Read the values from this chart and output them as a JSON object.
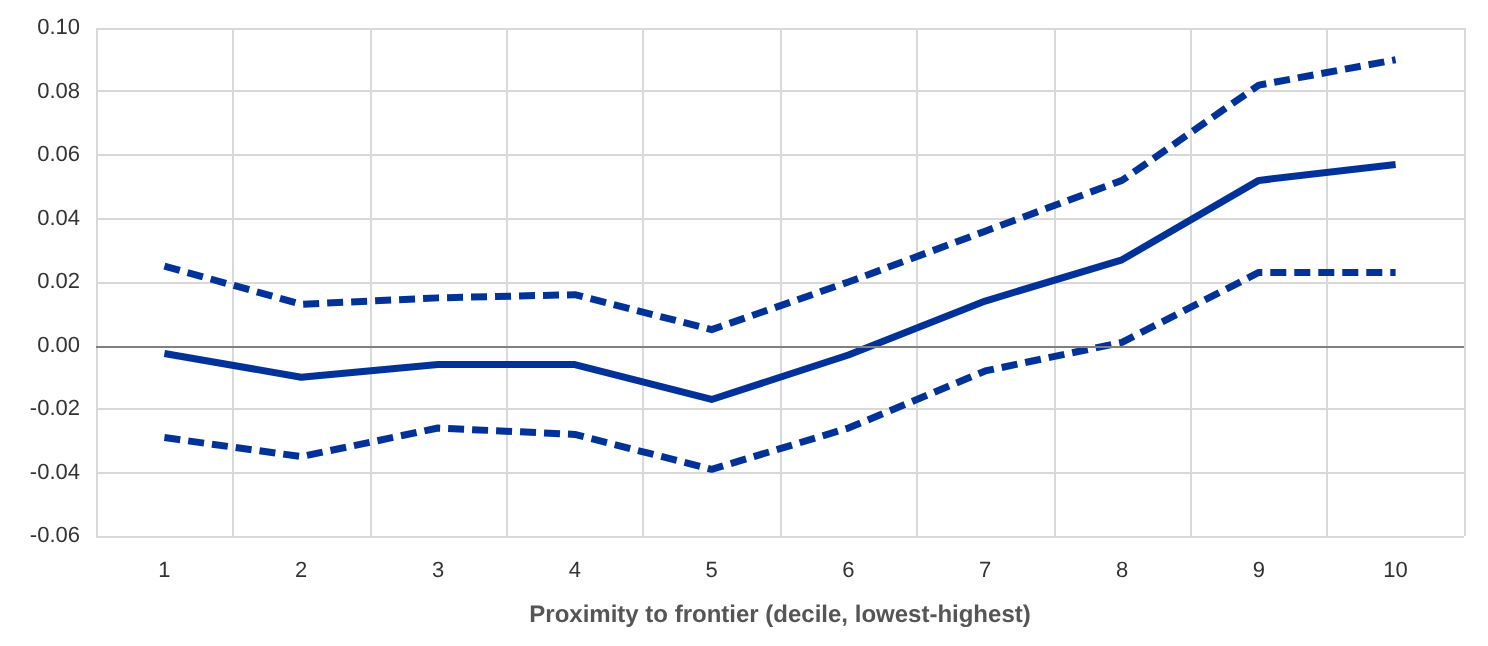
{
  "chart_data": {
    "type": "line",
    "xlabel": "Proximity to frontier (decile, lowest-highest)",
    "categories": [
      "1",
      "2",
      "3",
      "4",
      "5",
      "6",
      "7",
      "8",
      "9",
      "10"
    ],
    "series": [
      {
        "color": "#003299",
        "line_style": "solid",
        "values": [
          -0.0025,
          -0.01,
          -0.006,
          -0.006,
          -0.017,
          -0.003,
          0.014,
          0.027,
          0.052,
          0.057
        ]
      },
      {
        "color": "#003299",
        "line_style": "dashed",
        "values": [
          0.025,
          0.013,
          0.015,
          0.016,
          0.005,
          0.02,
          0.036,
          0.052,
          0.082,
          0.09
        ]
      },
      {
        "color": "#003299",
        "line_style": "dashed",
        "values": [
          -0.029,
          -0.035,
          -0.026,
          -0.028,
          -0.039,
          -0.026,
          -0.008,
          0.001,
          0.023,
          0.023
        ]
      }
    ],
    "ylim": [
      -0.06,
      0.1
    ],
    "yticks": [
      {
        "value": -0.06,
        "label": "-0.06"
      },
      {
        "value": -0.04,
        "label": "-0.04"
      },
      {
        "value": -0.02,
        "label": "-0.02"
      },
      {
        "value": 0,
        "label": "0.00"
      },
      {
        "value": 0.02,
        "label": "0.02"
      },
      {
        "value": 0.04,
        "label": "0.04"
      },
      {
        "value": 0.06,
        "label": "0.06"
      },
      {
        "value": 0.08,
        "label": "0.08"
      },
      {
        "value": 0.1,
        "label": "0.10"
      }
    ],
    "ref_lines": [
      {
        "axis": "y",
        "value": 0,
        "color": "#808080"
      }
    ],
    "grid": true,
    "marker": "none"
  }
}
